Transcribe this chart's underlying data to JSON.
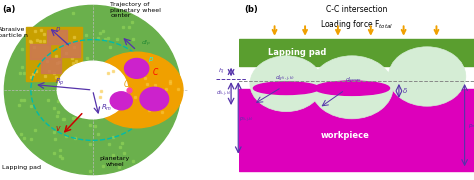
{
  "fig_width": 4.74,
  "fig_height": 1.8,
  "dpi": 100,
  "panel_a": {
    "label": "(a)",
    "outer_color": "#6ab04c",
    "yellow_color": "#c8a000",
    "workpiece_color": "#f0a000",
    "traj_color": "#00bbaa",
    "abrasive_color": "#cc7755",
    "magenta_color": "#cc22cc",
    "arrow_color": "#5533aa",
    "red_arrow": "#cc0000",
    "white": "#ffffff",
    "dot_color": "#88cc55"
  },
  "panel_b": {
    "label": "(b)",
    "title1": "C-C intersection",
    "title2": "Loading force F",
    "title2_sub": "total",
    "pad_color": "#5a9e2f",
    "workpiece_color": "#dd00bb",
    "particle_color": "#d5edd5",
    "arrow_color": "#f0a000",
    "dim_color": "#5533aa",
    "lapping_pad_text": "Lapping pad",
    "workpiece_text": "workpiece",
    "label_dg": "d",
    "label_dgmax": "d",
    "label_delta": "δ",
    "label_pmax": "p",
    "label_pijk": "p",
    "label_hj": "h",
    "label_dijk": "d"
  }
}
